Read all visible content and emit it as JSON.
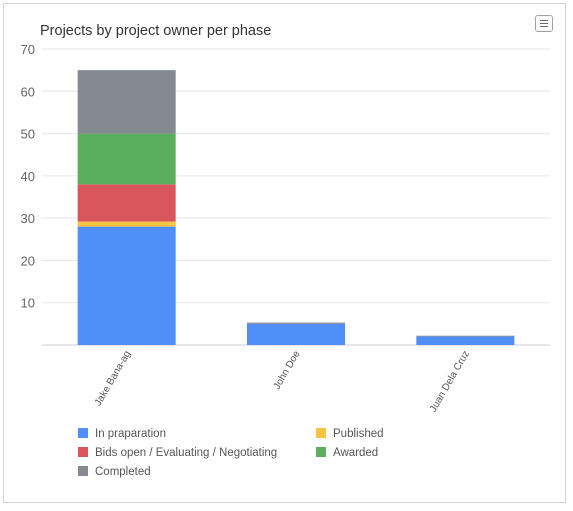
{
  "widget": {
    "menu_icon": "hamburger-menu-icon"
  },
  "chart_data": {
    "type": "bar",
    "stacked": true,
    "title": "Projects by project owner per phase",
    "xlabel": "",
    "ylabel": "",
    "ylim": [
      0,
      70
    ],
    "yticks": [
      10,
      20,
      30,
      40,
      50,
      60,
      70
    ],
    "categories": [
      "Jake Bana-ag",
      "John Doe",
      "Juan Dela Cruz"
    ],
    "series": [
      {
        "name": "In praparation",
        "color": "#4f8ff7",
        "values": [
          28,
          5,
          2
        ]
      },
      {
        "name": "Published",
        "color": "#f7c545",
        "values": [
          1.2,
          0,
          0
        ]
      },
      {
        "name": "Bids open / Evaluating / Negotiating",
        "color": "#d9575c",
        "values": [
          8.8,
          0,
          0
        ]
      },
      {
        "name": "Awarded",
        "color": "#5aae5d",
        "values": [
          12,
          0,
          0
        ]
      },
      {
        "name": "Completed",
        "color": "#858991",
        "values": [
          15,
          0.3,
          0.2
        ]
      }
    ],
    "grid": true,
    "legend_position": "bottom"
  }
}
